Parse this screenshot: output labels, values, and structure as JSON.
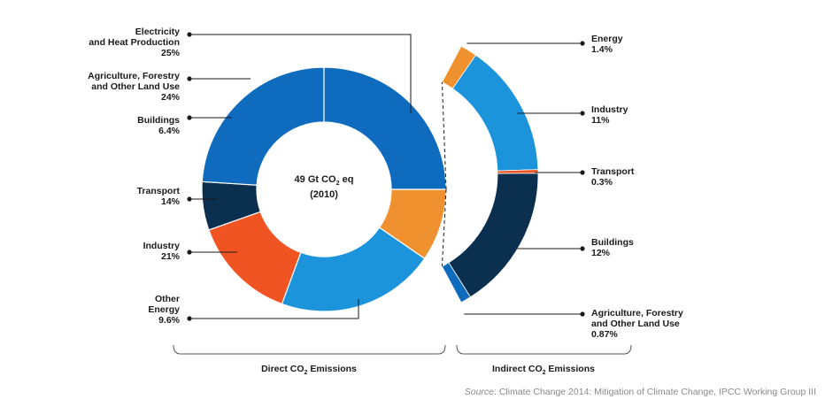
{
  "chart_data": {
    "type": "pie",
    "style": "donut",
    "center_label": {
      "line1_pre": "49 Gt CO",
      "line1_sub": "2",
      "line1_post": " eq",
      "line2": "(2010)"
    },
    "direct": {
      "group_label_pre": "Direct CO",
      "group_label_sub": "2",
      "group_label_post": " Emissions",
      "slices": [
        {
          "name": "Electricity and Heat Production",
          "lines": [
            "Electricity",
            "and Heat Production"
          ],
          "value": 25,
          "label": "25%",
          "color": "#0f6bbd"
        },
        {
          "name": "Agriculture, Forestry and Other Land Use",
          "lines": [
            "Agriculture, Forestry",
            "and Other Land Use"
          ],
          "value": 24,
          "label": "24%",
          "color": "#0f6bbd"
        },
        {
          "name": "Buildings",
          "lines": [
            "Buildings"
          ],
          "value": 6.4,
          "label": "6.4%",
          "color": "#0b2f4f"
        },
        {
          "name": "Transport",
          "lines": [
            "Transport"
          ],
          "value": 14,
          "label": "14%",
          "color": "#f05423"
        },
        {
          "name": "Industry",
          "lines": [
            "Industry"
          ],
          "value": 21,
          "label": "21%",
          "color": "#1c94db"
        },
        {
          "name": "Other Energy",
          "lines": [
            "Other",
            "Energy"
          ],
          "value": 9.6,
          "label": "9.6%",
          "color": "#f0912f"
        }
      ]
    },
    "indirect": {
      "group_label_pre": "Indirect CO",
      "group_label_sub": "2",
      "group_label_post": " Emissions",
      "slices": [
        {
          "name": "Energy",
          "lines": [
            "Energy"
          ],
          "value": 1.4,
          "label": "1.4%",
          "color": "#f0912f"
        },
        {
          "name": "Industry",
          "lines": [
            "Industry"
          ],
          "value": 11,
          "label": "11%",
          "color": "#1c94db"
        },
        {
          "name": "Transport",
          "lines": [
            "Transport"
          ],
          "value": 0.3,
          "label": "0.3%",
          "color": "#f05423"
        },
        {
          "name": "Buildings",
          "lines": [
            "Buildings"
          ],
          "value": 12,
          "label": "12%",
          "color": "#0b2f4f"
        },
        {
          "name": "Agriculture, Forestry and Other Land Use",
          "lines": [
            "Agriculture, Forestry",
            "and Other Land Use"
          ],
          "value": 0.87,
          "label": "0.87%",
          "color": "#0f6bbd"
        }
      ]
    }
  },
  "source": {
    "prefix": "Source",
    "text": ": Climate Change 2014: Mitigation of Climate Change, IPCC Working Group III"
  }
}
